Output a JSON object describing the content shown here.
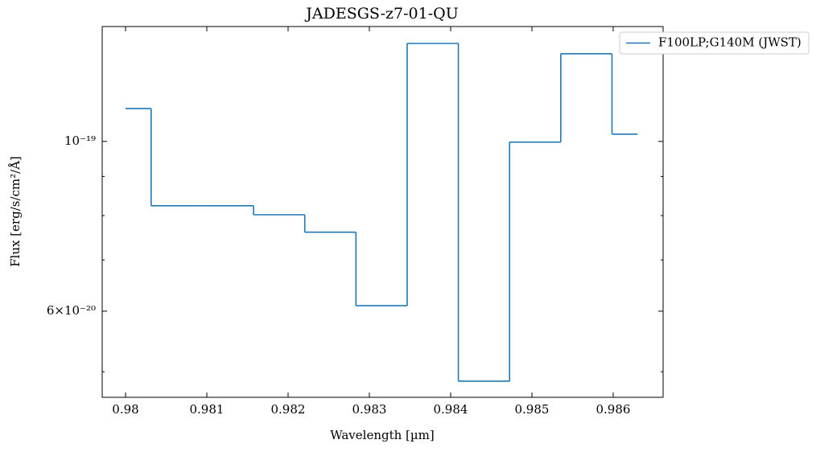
{
  "chart_data": {
    "type": "step",
    "title": "JADESGS-z7-01-QU",
    "xlabel": "Wavelength [µm]",
    "ylabel": "Flux [erg/s/cm²/Å]",
    "x": [
      0.98,
      0.98063,
      0.98126,
      0.98189,
      0.98252,
      0.98315,
      0.98378,
      0.98441,
      0.98504,
      0.98567,
      0.9863
    ],
    "series": [
      {
        "name": "F100LP;G140M (JWST)",
        "color": "#1f77b4",
        "values": [
          1.104e-19,
          8.24e-20,
          8.24e-20,
          8.02e-20,
          7.61e-20,
          6.1e-20,
          1.343e-19,
          4.86e-20,
          9.98e-20,
          1.302e-19,
          1.022e-19
        ]
      }
    ],
    "xlim": [
      0.979713,
      0.986614
    ],
    "xticks": [
      0.98,
      0.981,
      0.982,
      0.983,
      0.984,
      0.985,
      0.986
    ],
    "ylim": [
      4.63e-20,
      1.413e-19
    ],
    "ylog": true,
    "yticks": [
      {
        "value": 1e-19,
        "label": "10⁻¹⁹"
      },
      {
        "value": 6e-20,
        "label": "6×10⁻²⁰"
      }
    ],
    "yminorticks": [
      5e-20,
      7e-20,
      8e-20,
      9e-20
    ],
    "legend": "upper right"
  }
}
